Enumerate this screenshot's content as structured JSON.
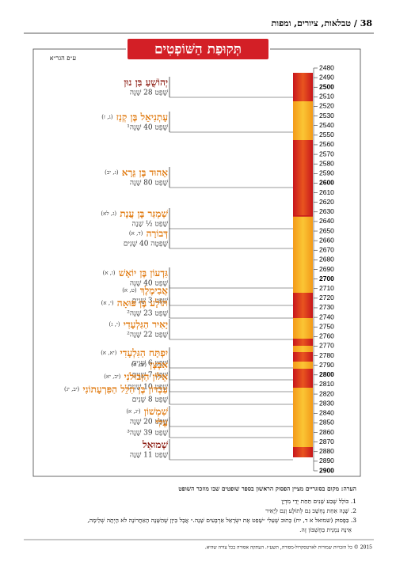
{
  "header": {
    "page": "38",
    "section": "טבלאות, ציורים, ומפות"
  },
  "title": "תְּקוּפַת הַשּׁוֹפְטִים",
  "source": "ע״פ הגר״א",
  "years": [
    2480,
    2490,
    2500,
    2510,
    2520,
    2530,
    2540,
    2550,
    2560,
    2570,
    2580,
    2590,
    2600,
    2610,
    2620,
    2630,
    2640,
    2650,
    2660,
    2670,
    2680,
    2690,
    2700,
    2710,
    2720,
    2730,
    2740,
    2750,
    2760,
    2770,
    2780,
    2790,
    2800,
    2810,
    2820,
    2830,
    2840,
    2850,
    2860,
    2870,
    2880,
    2890,
    2900
  ],
  "judges": [
    {
      "name": "יְהוֹשֻׁעַ בִּן נוּן",
      "ref": "",
      "term": "שָׁפַט 28 שָׁנָה"
    },
    {
      "name": "עָתְנִיאֵל בֶּן קְנַז",
      "ref": "(ג, ז)",
      "term": "שָׁפַט 40 שָׁנָה¹"
    },
    {
      "name": "אֵהוּד בֶּן גֵּרָא",
      "ref": "(ג, יב)",
      "term": "שָׁפַט 80 שָׁנָה"
    },
    {
      "name": "שַׁמְגַּר בֶּן עֲנָת",
      "ref": "(ג, לא)",
      "term": "שָׁפַט ½ שָׁנָה"
    },
    {
      "name": "דְּבוֹרָה",
      "ref": "(ד, א)",
      "term": "שָׁפְטָה 40 שָׁנִים"
    },
    {
      "name": "גִּדְעוֹן בֶּן יוֹאָשׁ",
      "ref": "(ו, א)",
      "term": "שָׁפַט 40 שָׁנָה"
    },
    {
      "name": "אֲבִימֶלֶךְ",
      "ref": "(ט, א)",
      "term": "שָׁפַט 3 שָׁנִים"
    },
    {
      "name": "תּוֹלָע בֶּן פּוּאָה",
      "ref": "(י, א)",
      "term": "שָׁפַט 23 שָׁנָה²"
    },
    {
      "name": "יָאִיר הַגִּלְעָדִי",
      "ref": "(י, ג)",
      "term": "שָׁפַט 22 שָׁנָה²"
    },
    {
      "name": "יִפְתָּח הַגִּלְעָדִי",
      "ref": "(יא, א)",
      "term": "שָׁפַט 6 שָׁנִים"
    },
    {
      "name": "אִבְצָן",
      "ref": "(יב, ח)",
      "term": "שָׁפַט 7 שָׁנִים"
    },
    {
      "name": "אֵלוֹן הַזְּבוּלֹנִי",
      "ref": "(יב, יא)",
      "term": "שָׁפַט 10 שָׁנִים"
    },
    {
      "name": "עַבְדּוֹן בֶּן הִלֵּל הַפִּרְעָתוֹנִי",
      "ref": "(יב, יג)",
      "term": "שָׁפַט 8 שָׁנִים"
    },
    {
      "name": "שִׁמְשׁוֹן",
      "ref": "(יג, א)",
      "term": "שָׁפַט 20 שָׁנָה"
    },
    {
      "name": "עֵלִי",
      "ref": "",
      "term": "שָׁפַט 39 שָׁנָה³"
    },
    {
      "name": "שְׁמוּאֵל",
      "ref": "",
      "term": "שָׁפַט 11 שָׁנָה"
    }
  ],
  "notes": {
    "intro": "הערה: מקום בסוגריים מציין הפסוק הראשון בספר שופטים שבו מוזכר השופט",
    "items": [
      "1. כּוֹלֵל שֶׁבַע שָׁנִים תַּחַת יְדֵי מִדְיָן",
      "2. שָׁנָה אַחַת נֶחְשָׁב גַּם לְתוֹלָע וְגַם לְיָאִיר",
      "3. בַּפָּסוּק (שמואל א ד, יח) כָּתוּב שֶׁעֵלִי ״שָׁפַט אֶת יִשְׂרָאֵל אַרְבָּעִים שָׁנָה.״ אֲבָל כֵּיוָן שֶׁהַשָּׁנָה הָאַחֲרוֹנָה לֹא הָיְתָה שְׁלֵימָה,",
      "אֵינָהּ נִמְנֵית בַּחֶשְׁבּוֹן זֶה."
    ]
  },
  "copyright": "2015 © כל הזכויות שמורות לארטסקרול-מסורה, תשע״ו. העתקה אסורה בכל צורה שהיא."
}
